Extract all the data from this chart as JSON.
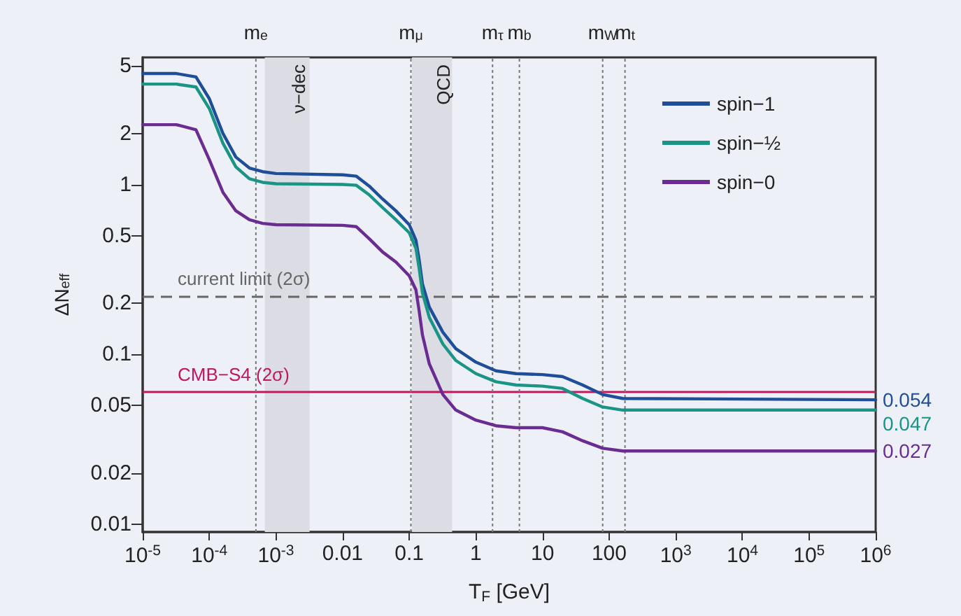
{
  "chart_data": {
    "type": "line",
    "xlabel": "T$_{F}$ [GeV]",
    "ylabel": "ΔN$_{eff}$",
    "log": "xy",
    "x": [
      1e-05,
      3.2e-05,
      6.3e-05,
      0.0001,
      0.00016,
      0.00025,
      0.0004,
      0.00063,
      0.001,
      0.01,
      0.016,
      0.025,
      0.04,
      0.063,
      0.1,
      0.126,
      0.141,
      0.158,
      0.2,
      0.32,
      0.5,
      1,
      2,
      4,
      10,
      20,
      40,
      80,
      160,
      1000000.0
    ],
    "series": [
      {
        "name": "spin−1",
        "color": "#1f4e99",
        "values": [
          4.5,
          4.5,
          4.3,
          3.2,
          2.0,
          1.45,
          1.25,
          1.19,
          1.16,
          1.14,
          1.12,
          0.98,
          0.82,
          0.7,
          0.58,
          0.47,
          0.36,
          0.26,
          0.19,
          0.135,
          0.108,
          0.09,
          0.08,
          0.077,
          0.076,
          0.074,
          0.066,
          0.058,
          0.055,
          0.054
        ],
        "value_labels": [
          null,
          null,
          null,
          null,
          null,
          null,
          null,
          null,
          null,
          null,
          null,
          null,
          null,
          null,
          null,
          null,
          null,
          null,
          null,
          null,
          null,
          null,
          null,
          null,
          null,
          null,
          null,
          null,
          null,
          "0.054"
        ]
      },
      {
        "name": "spin−½",
        "color": "#1a9484",
        "values": [
          3.9,
          3.9,
          3.75,
          2.8,
          1.75,
          1.27,
          1.08,
          1.03,
          1.01,
          1.0,
          0.99,
          0.87,
          0.73,
          0.62,
          0.52,
          0.42,
          0.32,
          0.23,
          0.165,
          0.115,
          0.092,
          0.077,
          0.069,
          0.066,
          0.065,
          0.063,
          0.055,
          0.049,
          0.047,
          0.047
        ],
        "value_labels": [
          null,
          null,
          null,
          null,
          null,
          null,
          null,
          null,
          null,
          null,
          null,
          null,
          null,
          null,
          null,
          null,
          null,
          null,
          null,
          null,
          null,
          null,
          null,
          null,
          null,
          null,
          null,
          null,
          null,
          "0.047"
        ]
      },
      {
        "name": "spin−0",
        "color": "#6a2c91",
        "values": [
          2.25,
          2.25,
          2.1,
          1.4,
          0.9,
          0.7,
          0.62,
          0.59,
          0.58,
          0.575,
          0.565,
          0.48,
          0.4,
          0.35,
          0.29,
          0.24,
          0.18,
          0.13,
          0.088,
          0.058,
          0.047,
          0.041,
          0.038,
          0.037,
          0.037,
          0.035,
          0.031,
          0.028,
          0.027,
          0.027
        ],
        "value_labels": [
          null,
          null,
          null,
          null,
          null,
          null,
          null,
          null,
          null,
          null,
          null,
          null,
          null,
          null,
          null,
          null,
          null,
          null,
          null,
          null,
          null,
          null,
          null,
          null,
          null,
          null,
          null,
          null,
          null,
          "0.027"
        ]
      }
    ],
    "xlim": [
      1e-05,
      1000000.0
    ],
    "xticks": [
      {
        "value": 1e-05,
        "label": "10$^{-5}$"
      },
      {
        "value": 0.0001,
        "label": "10$^{-4}$"
      },
      {
        "value": 0.001,
        "label": "10$^{-3}$"
      },
      0.01,
      0.1,
      1,
      10,
      100,
      {
        "value": 1000.0,
        "label": "10$^{3}$"
      },
      {
        "value": 10000.0,
        "label": "10$^{4}$"
      },
      {
        "value": 100000.0,
        "label": "10$^{5}$"
      },
      {
        "value": 1000000.0,
        "label": "10$^{6}$"
      }
    ],
    "ylim": [
      0.009,
      5.6
    ],
    "yticks": [
      0.01,
      0.02,
      0.05,
      0.1,
      0.2,
      0.5,
      1,
      2,
      5
    ],
    "ref_lines": [
      {
        "axis": "x",
        "value": 0.0005,
        "label": "m$_{e}$",
        "color": "#777777",
        "line_style": "dotted"
      },
      {
        "axis": "x",
        "value": 0.106,
        "label": "m$_{μ}$",
        "color": "#777777",
        "line_style": "dotted"
      },
      {
        "axis": "x",
        "value": 1.78,
        "label": "m$_{τ}$",
        "color": "#777777",
        "line_style": "dotted"
      },
      {
        "axis": "x",
        "value": 4.5,
        "label": "m$_{b}$",
        "color": "#777777",
        "line_style": "dotted"
      },
      {
        "axis": "x",
        "value": 80,
        "label": "m$_{W}$",
        "color": "#777777",
        "line_style": "dotted"
      },
      {
        "axis": "x",
        "value": 173,
        "label": "m$_{t}$",
        "color": "#777777",
        "line_style": "dotted"
      },
      {
        "axis": "y",
        "value": 0.22,
        "label": "current limit (2σ)",
        "color": "#666666",
        "line_style": "dashed"
      },
      {
        "axis": "y",
        "value": 0.06,
        "label": "CMB−S4 (2σ)",
        "color": "#c0185e",
        "line_style": "solid"
      }
    ],
    "bands": [
      {
        "axis": "x",
        "from": 0.00068,
        "to": 0.0032,
        "label": "ν−dec",
        "color": "#dcdce4"
      },
      {
        "axis": "x",
        "from": 0.11,
        "to": 0.44,
        "label": "QCD",
        "color": "#dcdce4"
      }
    ],
    "legend": "top right"
  }
}
